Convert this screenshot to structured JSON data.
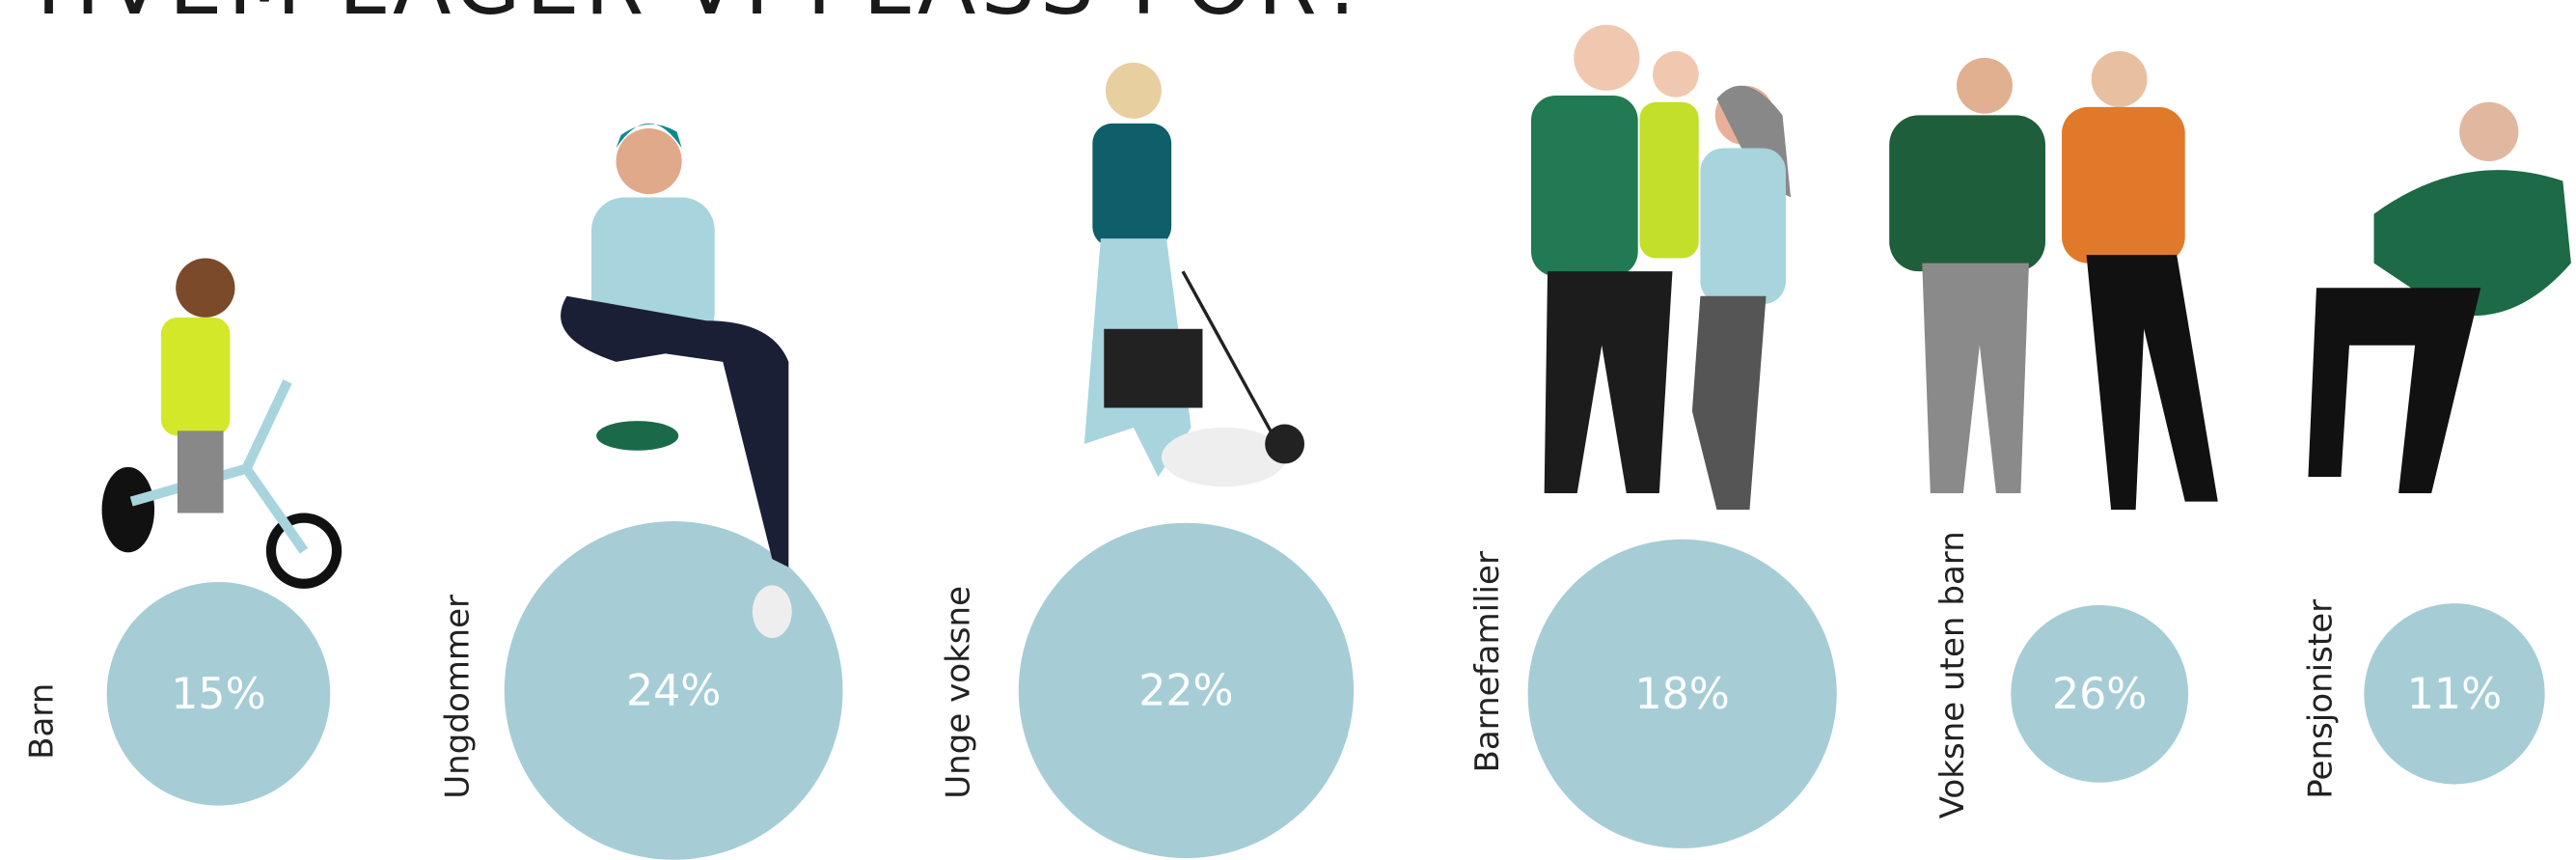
{
  "header": {
    "title": "HVEM LAGER VI PLASS FOR?"
  },
  "groups": [
    {
      "label": "Barn",
      "share": "15%"
    },
    {
      "label": "Ungdommer",
      "share": "24%"
    },
    {
      "label": "Unge voksne",
      "share": "22%"
    },
    {
      "label": "Barnefamilier",
      "share": "18%"
    },
    {
      "label": "Voksne uten barn",
      "share": "26%"
    },
    {
      "label": "Pensjonister",
      "share": "11%"
    }
  ]
}
